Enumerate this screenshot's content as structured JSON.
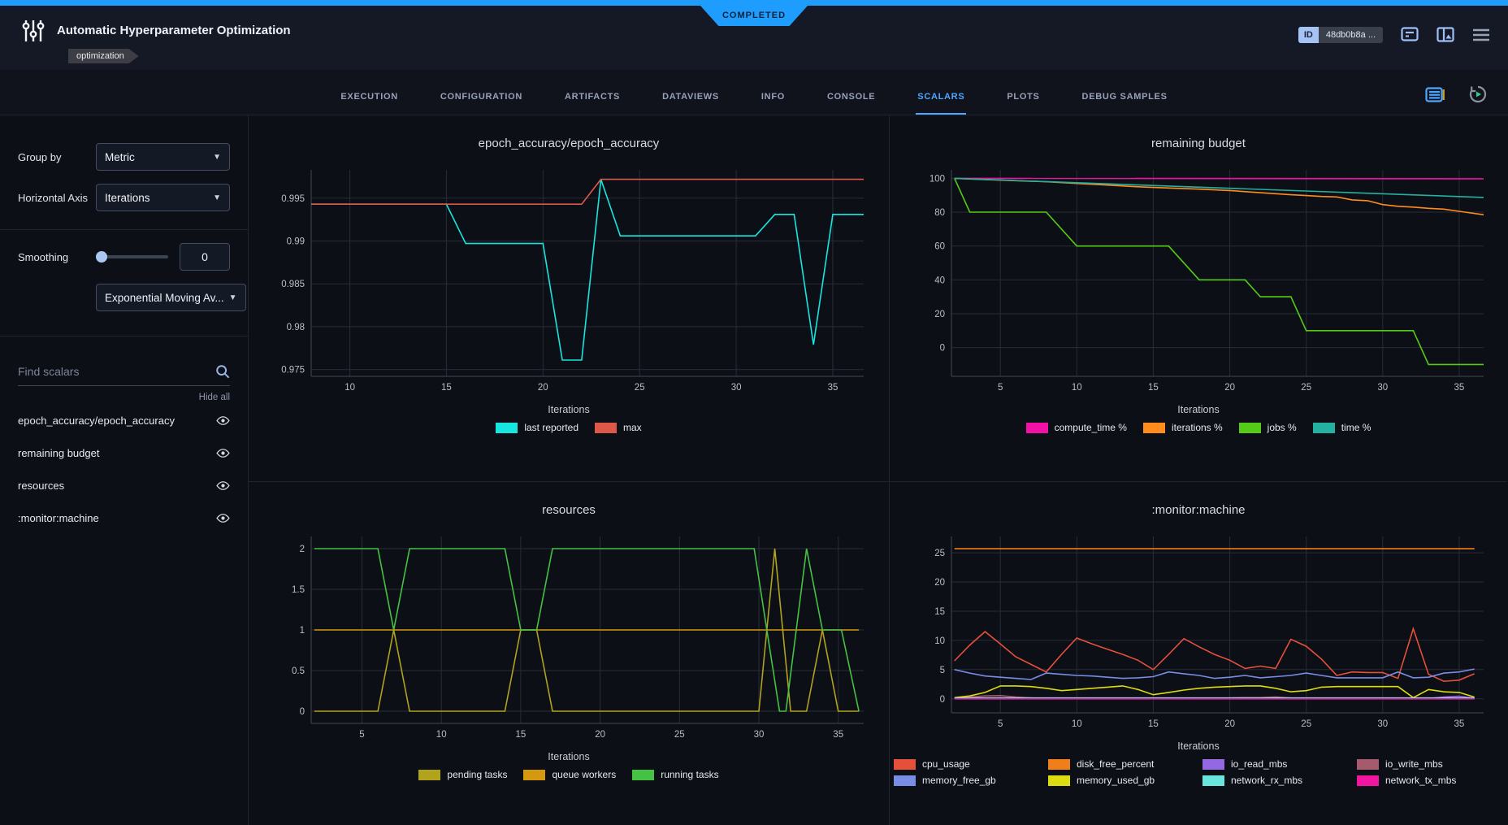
{
  "status_banner": {
    "label": "COMPLETED"
  },
  "header": {
    "title": "Automatic Hyperparameter Optimization",
    "tag": "optimization",
    "id_label": "ID",
    "id_value": "48db0b8a ..."
  },
  "tabs": {
    "items": [
      {
        "label": "EXECUTION",
        "active": false
      },
      {
        "label": "CONFIGURATION",
        "active": false
      },
      {
        "label": "ARTIFACTS",
        "active": false
      },
      {
        "label": "DATAVIEWS",
        "active": false
      },
      {
        "label": "INFO",
        "active": false
      },
      {
        "label": "CONSOLE",
        "active": false
      },
      {
        "label": "SCALARS",
        "active": true
      },
      {
        "label": "PLOTS",
        "active": false
      },
      {
        "label": "DEBUG SAMPLES",
        "active": false
      }
    ]
  },
  "sidebar": {
    "group_by_label": "Group by",
    "group_by_value": "Metric",
    "horizontal_axis_label": "Horizontal Axis",
    "horizontal_axis_value": "Iterations",
    "smoothing_label": "Smoothing",
    "smoothing_value": "0",
    "smoothing_type_value": "Exponential Moving Av...",
    "search_placeholder": "Find scalars",
    "hide_all_label": "Hide all",
    "metrics": [
      {
        "label": "epoch_accuracy/epoch_accuracy"
      },
      {
        "label": "remaining budget"
      },
      {
        "label": "resources"
      },
      {
        "label": ":monitor:machine"
      }
    ]
  },
  "chart_data": [
    {
      "type": "line",
      "title": "epoch_accuracy/epoch_accuracy",
      "xlabel": "Iterations",
      "xlim": [
        8,
        36.6
      ],
      "ylim": [
        0.9742,
        0.9983
      ],
      "xticks": [
        10,
        15,
        20,
        25,
        30,
        35
      ],
      "yticks": [
        0.975,
        0.98,
        0.985,
        0.99,
        0.995
      ],
      "ytick_labels": [
        "0.975",
        "0.98",
        "0.985",
        "0.99",
        "0.995"
      ],
      "legend_position": "bottom",
      "series": [
        {
          "name": "last reported",
          "color": "#17e6e0",
          "x": [
            8,
            15,
            16,
            20,
            21,
            22,
            23,
            24,
            31,
            32,
            33,
            34,
            35,
            36.6
          ],
          "y": [
            0.9943,
            0.9943,
            0.9897,
            0.9897,
            0.9761,
            0.9761,
            0.9972,
            0.9906,
            0.9906,
            0.9931,
            0.9931,
            0.9779,
            0.9931,
            0.9931
          ]
        },
        {
          "name": "max",
          "color": "#de584a",
          "x": [
            8,
            22,
            23,
            36.6
          ],
          "y": [
            0.9943,
            0.9943,
            0.9972,
            0.9972
          ]
        }
      ]
    },
    {
      "type": "line",
      "title": "remaining budget",
      "xlabel": "Iterations",
      "xlim": [
        1.8,
        36.6
      ],
      "ylim": [
        -17,
        105
      ],
      "xticks": [
        5,
        10,
        15,
        20,
        25,
        30,
        35
      ],
      "yticks": [
        0,
        20,
        40,
        60,
        80,
        100
      ],
      "ytick_labels": [
        "0",
        "20",
        "40",
        "60",
        "80",
        "100"
      ],
      "legend_position": "bottom",
      "series": [
        {
          "name": "compute_time %",
          "color": "#f211a6",
          "x": [
            2,
            36.6
          ],
          "y": [
            100,
            99.7
          ]
        },
        {
          "name": "iterations %",
          "color": "#ff8c1d",
          "x": [
            2,
            4,
            6,
            8,
            10,
            12,
            14,
            16,
            18,
            20,
            22,
            24,
            25,
            26,
            27,
            28,
            29,
            30,
            31,
            32,
            33,
            34,
            35,
            36.6
          ],
          "y": [
            100,
            99.3,
            98.6,
            98,
            97,
            96,
            95,
            94.3,
            93.6,
            92.8,
            91.5,
            90.3,
            89.8,
            89.3,
            89,
            87.3,
            86.8,
            84.5,
            83.5,
            83,
            82.3,
            81.8,
            80.5,
            78.5
          ]
        },
        {
          "name": "jobs %",
          "color": "#55cb17",
          "x": [
            2,
            3,
            8,
            10,
            16,
            18,
            21,
            22,
            24,
            25,
            32,
            33,
            36.6
          ],
          "y": [
            100,
            80,
            80,
            60,
            60,
            40,
            40,
            30,
            30,
            10,
            10,
            -10,
            -10
          ]
        },
        {
          "name": "time %",
          "color": "#23b2a1",
          "x": [
            2,
            36.6
          ],
          "y": [
            100,
            88.7
          ]
        }
      ]
    },
    {
      "type": "line",
      "title": "resources",
      "xlabel": "Iterations",
      "xlim": [
        1.8,
        36.6
      ],
      "ylim": [
        -0.15,
        2.15
      ],
      "xticks": [
        5,
        10,
        15,
        20,
        25,
        30,
        35
      ],
      "yticks": [
        0,
        0.5,
        1,
        1.5,
        2
      ],
      "ytick_labels": [
        "0",
        "0.5",
        "1",
        "1.5",
        "2"
      ],
      "legend_position": "bottom",
      "series": [
        {
          "name": "pending tasks",
          "color": "#b2a31d",
          "x": [
            2,
            6,
            7,
            8,
            14,
            15,
            16,
            17,
            30,
            31,
            32,
            33,
            34,
            35,
            36.3
          ],
          "y": [
            0,
            0,
            1,
            0,
            0,
            1,
            1,
            0,
            0,
            2,
            0,
            0,
            1,
            0,
            0
          ]
        },
        {
          "name": "queue workers",
          "color": "#d4990e",
          "x": [
            2,
            36.3
          ],
          "y": [
            1,
            1
          ]
        },
        {
          "name": "running tasks",
          "color": "#45c244",
          "x": [
            2,
            6,
            7,
            8,
            14,
            15,
            16,
            17,
            29.7,
            31.3,
            31.7,
            33,
            34,
            35.2,
            36.3
          ],
          "y": [
            2,
            2,
            1,
            2,
            2,
            1,
            1,
            2,
            2,
            0,
            0,
            2,
            1,
            1,
            0
          ]
        }
      ]
    },
    {
      "type": "line",
      "title": ":monitor:machine",
      "xlabel": "Iterations",
      "xlim": [
        1.8,
        36.6
      ],
      "ylim": [
        -2.4,
        27.8
      ],
      "xticks": [
        5,
        10,
        15,
        20,
        25,
        30,
        35
      ],
      "yticks": [
        0,
        5,
        10,
        15,
        20,
        25
      ],
      "ytick_labels": [
        "0",
        "5",
        "10",
        "15",
        "20",
        "25"
      ],
      "legend_position": "bottom",
      "x": [
        2,
        3,
        4,
        5,
        6,
        7,
        8,
        9,
        10,
        11,
        12,
        13,
        14,
        15,
        16,
        17,
        18,
        19,
        20,
        21,
        22,
        23,
        24,
        25,
        26,
        27,
        28,
        29,
        30,
        31,
        32,
        33,
        34,
        35,
        36
      ],
      "series": [
        {
          "name": "cpu_usage",
          "color": "#e5503a",
          "y": [
            6.5,
            9.2,
            11.5,
            9.4,
            7.2,
            5.9,
            4.6,
            7.6,
            10.4,
            9.4,
            8.5,
            7.6,
            6.6,
            5.0,
            7.6,
            10.3,
            8.9,
            7.6,
            6.6,
            5.2,
            5.6,
            5.2,
            10.2,
            9.0,
            6.8,
            4.0,
            4.6,
            4.5,
            4.5,
            3.5,
            12.0,
            4.2,
            3.0,
            3.2,
            4.3
          ]
        },
        {
          "name": "disk_free_percent",
          "color": "#ef7e1b",
          "x": [
            2,
            36
          ],
          "y": [
            25.7,
            25.7
          ]
        },
        {
          "name": "io_read_mbs",
          "color": "#9468e2",
          "y": [
            0.05,
            0.05,
            0.05,
            0.05,
            0.05,
            0.05,
            0.05,
            0.05,
            0.05,
            0.05,
            0.05,
            0.05,
            0.05,
            0.05,
            0.05,
            0.05,
            0.05,
            0.05,
            0.05,
            0.05,
            0.05,
            0.05,
            0.05,
            0.05,
            0.05,
            0.05,
            0.05,
            0.05,
            0.05,
            0.05,
            0.05,
            0.05,
            0.3,
            0.45,
            0.1
          ]
        },
        {
          "name": "io_write_mbs",
          "color": "#a65a6d",
          "y": [
            0.15,
            0.3,
            0.5,
            0.55,
            0.3,
            0.15,
            0.1,
            0.1,
            0.1,
            0.1,
            0.1,
            0.1,
            0.1,
            0.1,
            0.1,
            0.1,
            0.1,
            0.1,
            0.15,
            0.2,
            0.2,
            0.3,
            0.15,
            0.1,
            0.1,
            0.1,
            0.1,
            0.1,
            0.1,
            0.1,
            0.1,
            0.1,
            0.1,
            0.1,
            0.1
          ]
        },
        {
          "name": "memory_free_gb",
          "color": "#7a8de5",
          "y": [
            5.0,
            4.4,
            3.9,
            3.7,
            3.5,
            3.3,
            4.4,
            4.2,
            4.0,
            3.9,
            3.7,
            3.5,
            3.6,
            3.8,
            4.6,
            4.3,
            4.0,
            3.5,
            3.7,
            4.0,
            3.6,
            3.8,
            4.0,
            4.4,
            4.0,
            3.6,
            3.6,
            3.6,
            3.6,
            4.6,
            3.6,
            3.7,
            4.4,
            4.6,
            5.1
          ]
        },
        {
          "name": "memory_used_gb",
          "color": "#dcdc10",
          "y": [
            0.2,
            0.5,
            1.1,
            2.2,
            2.2,
            2.1,
            1.8,
            1.4,
            1.6,
            1.8,
            2.0,
            2.2,
            1.6,
            0.7,
            1.1,
            1.5,
            1.8,
            2.0,
            2.1,
            2.2,
            2.2,
            1.8,
            1.2,
            1.4,
            2.0,
            2.1,
            2.1,
            2.1,
            2.1,
            2.1,
            0.2,
            1.6,
            1.2,
            1.1,
            0.3
          ]
        },
        {
          "name": "network_rx_mbs",
          "color": "#68e5dd",
          "x": [
            2,
            36
          ],
          "y": [
            0.15,
            0.15
          ]
        },
        {
          "name": "network_tx_mbs",
          "color": "#f215a0",
          "x": [
            2,
            36
          ],
          "y": [
            0.0,
            0.0
          ]
        }
      ]
    }
  ]
}
